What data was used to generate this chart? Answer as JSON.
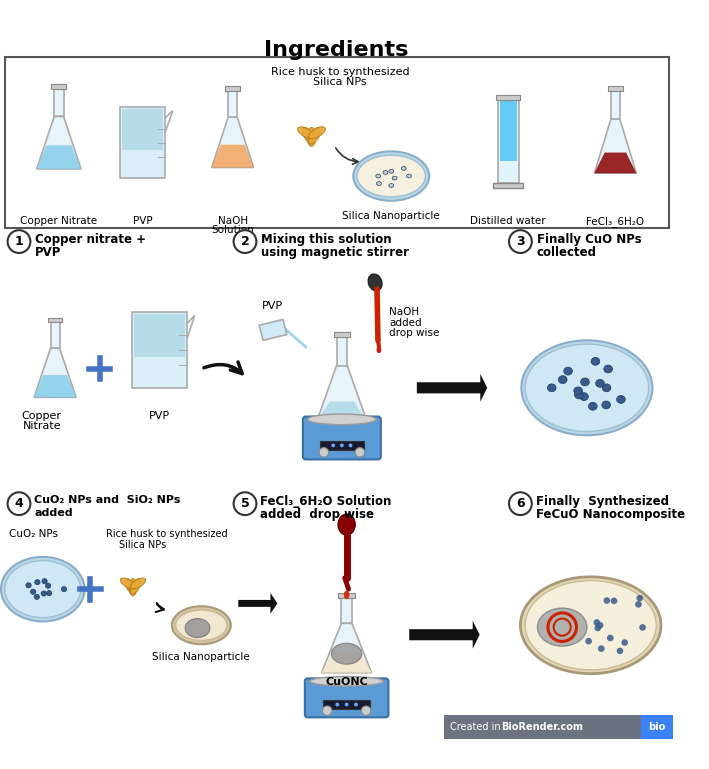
{
  "title": "Ingredients",
  "bg_color": "#ffffff",
  "watermark_text": "Created in BioRender.com",
  "watermark_bio": "bio",
  "colors": {
    "flask_blue": "#87ceeb",
    "flask_orange": "#f4a460",
    "flask_dark_red": "#8b0000",
    "beaker_blue": "#add8e6",
    "cylinder_blue": "#4fc3f7",
    "step_circle": "#ffffff",
    "step_text": "#000000",
    "arrow_color": "#1a1a1a",
    "box_border": "#555555",
    "petri_blue": "#d0e8f5",
    "dot_dark_blue": "#3a5a8a",
    "stirrer_blue": "#5b9bd5",
    "rice_orange": "#e8a838",
    "silica_gray": "#aaaaaa",
    "plate_cream": "#f5e6c8",
    "plus_blue": "#4472c4",
    "dropper_red": "#cc2200",
    "dropper_dark": "#333333",
    "watermark_bg": "#6b7280",
    "watermark_blue": "#3b82f6"
  }
}
